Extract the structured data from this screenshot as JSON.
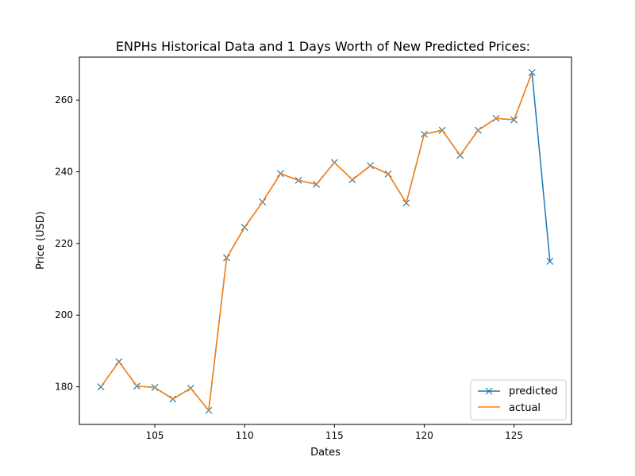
{
  "chart_data": {
    "type": "line",
    "title": "ENPHs Historical Data and 1 Days Worth of New Predicted Prices:",
    "xlabel": "Dates",
    "ylabel": "Price (USD)",
    "xlim": [
      100.8,
      128.2
    ],
    "ylim": [
      169.5,
      272.0
    ],
    "xticks": [
      105,
      110,
      115,
      120,
      125
    ],
    "yticks": [
      180,
      200,
      220,
      240,
      260
    ],
    "grid": false,
    "legend_position": "lower-right",
    "colors": {
      "predicted": "#1f77b4",
      "actual": "#ff7f0e"
    },
    "series": [
      {
        "name": "predicted",
        "marker": "x",
        "x": [
          102,
          103,
          104,
          105,
          106,
          107,
          108,
          109,
          110,
          111,
          112,
          113,
          114,
          115,
          116,
          117,
          118,
          119,
          120,
          121,
          122,
          123,
          124,
          125,
          126,
          127
        ],
        "values": [
          180.0,
          187.0,
          180.2,
          179.8,
          176.6,
          179.6,
          173.4,
          216.0,
          224.5,
          231.6,
          239.5,
          237.6,
          236.5,
          242.6,
          237.8,
          241.7,
          239.4,
          231.3,
          250.5,
          251.6,
          244.6,
          251.6,
          254.9,
          254.5,
          267.7,
          215.0
        ]
      },
      {
        "name": "actual",
        "marker": "",
        "x": [
          102,
          103,
          104,
          105,
          106,
          107,
          108,
          109,
          110,
          111,
          112,
          113,
          114,
          115,
          116,
          117,
          118,
          119,
          120,
          121,
          122,
          123,
          124,
          125,
          126
        ],
        "values": [
          180.0,
          187.0,
          180.2,
          179.8,
          176.6,
          179.6,
          173.4,
          216.0,
          224.5,
          231.6,
          239.5,
          237.6,
          236.5,
          242.6,
          237.8,
          241.7,
          239.4,
          231.3,
          250.5,
          251.6,
          244.6,
          251.6,
          254.9,
          254.5,
          267.7
        ]
      }
    ]
  }
}
